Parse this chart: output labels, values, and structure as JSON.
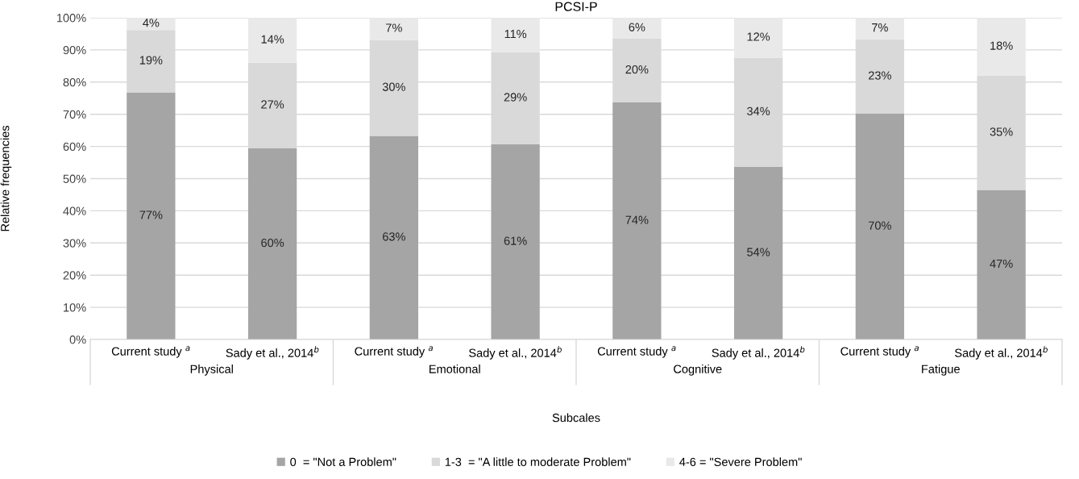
{
  "chart_data": {
    "type": "bar",
    "title": "PCSI-P",
    "xlabel": "Subcales",
    "ylabel": "Relative frequencies",
    "categories": [
      "Current study $^{a}$",
      "Sady et al., 2014$^{b}$",
      "Current study $^{a}$",
      "Sady et al., 2014$^{b}$",
      "Current study $^{a}$",
      "Sady et al., 2014$^{b}$",
      "Current study $^{a}$",
      "Sady et al., 2014$^{b}$"
    ],
    "annotations": [
      "Physical",
      "Emotional",
      "Cognitive",
      "Fatigue"
    ],
    "stacked": true,
    "series": [
      {
        "name": "0  = \"Not a Problem\"",
        "color": "#a5a5a5",
        "values": [
          76.8,
          59.5,
          63.3,
          60.7,
          73.7,
          53.7,
          70.2,
          46.5
        ],
        "value_labels": [
          "77%",
          "60%",
          "63%",
          "61%",
          "74%",
          "54%",
          "70%",
          "47%"
        ]
      },
      {
        "name": "1-3  = \"A little to moderate Problem\"",
        "color": "#d9d9d9",
        "values": [
          19.4,
          26.5,
          29.8,
          28.6,
          19.8,
          33.9,
          23.1,
          35.5
        ],
        "value_labels": [
          "19%",
          "27%",
          "30%",
          "29%",
          "20%",
          "34%",
          "23%",
          "35%"
        ]
      },
      {
        "name": "4-6 = \"Severe Problem\"",
        "color": "#e9e9e9",
        "values": [
          3.8,
          14.0,
          6.9,
          10.7,
          6.5,
          12.4,
          6.7,
          18.0
        ],
        "value_labels": [
          "4%",
          "14%",
          "7%",
          "11%",
          "6%",
          "12%",
          "7%",
          "18%"
        ]
      }
    ],
    "ylim": [
      0,
      100
    ],
    "yticks": [
      {
        "value": 0,
        "label": "0%"
      },
      {
        "value": 10,
        "label": "10%"
      },
      {
        "value": 20,
        "label": "20%"
      },
      {
        "value": 30,
        "label": "30%"
      },
      {
        "value": 40,
        "label": "40%"
      },
      {
        "value": 50,
        "label": "50%"
      },
      {
        "value": 60,
        "label": "60%"
      },
      {
        "value": 70,
        "label": "70%"
      },
      {
        "value": 80,
        "label": "80%"
      },
      {
        "value": 90,
        "label": "90%"
      },
      {
        "value": 100,
        "label": "100%"
      }
    ],
    "grid": "y",
    "legend": "bottom"
  }
}
